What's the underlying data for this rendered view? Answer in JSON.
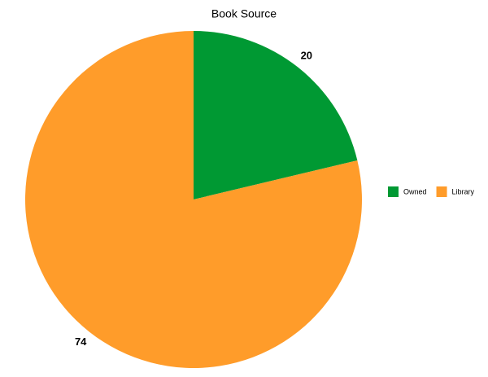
{
  "chart_data": {
    "type": "pie",
    "title": "Book Source",
    "categories": [
      "Owned",
      "Library"
    ],
    "values": [
      20,
      74
    ],
    "colors": [
      "#009933",
      "#ff9c2a"
    ],
    "legend": "right"
  }
}
